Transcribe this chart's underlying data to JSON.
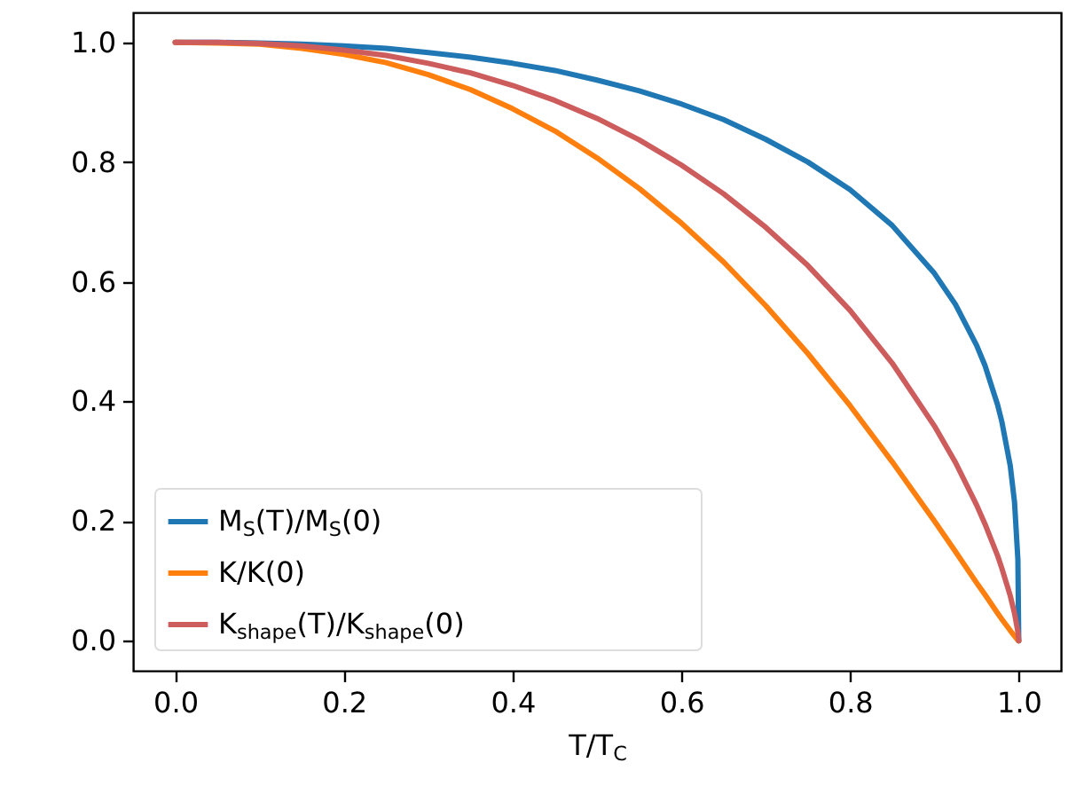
{
  "chart_data": {
    "type": "line",
    "xlabel": "T/T$_{C}$",
    "x": [
      0,
      0.05,
      0.1,
      0.15,
      0.2,
      0.25,
      0.3,
      0.35,
      0.4,
      0.45,
      0.5,
      0.55,
      0.6,
      0.65,
      0.7,
      0.75,
      0.8,
      0.85,
      0.9,
      0.925,
      0.95,
      0.96,
      0.975,
      0.98,
      0.99,
      0.995,
      0.999,
      1
    ],
    "series": [
      {
        "name": "M$_{S}$(T)/M$_{S}$(0)",
        "color": "#1f77b4",
        "values": [
          1,
          1.0,
          0.999,
          0.997,
          0.994,
          0.99,
          0.983,
          0.975,
          0.965,
          0.953,
          0.937,
          0.919,
          0.897,
          0.871,
          0.838,
          0.8,
          0.754,
          0.694,
          0.614,
          0.562,
          0.494,
          0.46,
          0.394,
          0.366,
          0.292,
          0.232,
          0.136,
          0
        ]
      },
      {
        "name": "K/K(0)",
        "color": "#ff7f0e",
        "values": [
          1,
          0.999,
          0.997,
          0.99,
          0.98,
          0.966,
          0.946,
          0.921,
          0.889,
          0.852,
          0.807,
          0.756,
          0.698,
          0.633,
          0.56,
          0.48,
          0.393,
          0.299,
          0.2,
          0.149,
          0.097,
          0.077,
          0.046,
          0.036,
          0.017,
          0.008,
          0.001,
          0
        ]
      },
      {
        "name": "K$_{shape}$(T)/K$_{shape}$(0)",
        "color": "#cd5c5c",
        "values": [
          1,
          1.0,
          0.998,
          0.994,
          0.987,
          0.978,
          0.965,
          0.949,
          0.928,
          0.903,
          0.873,
          0.837,
          0.795,
          0.747,
          0.691,
          0.627,
          0.552,
          0.464,
          0.359,
          0.298,
          0.227,
          0.195,
          0.142,
          0.121,
          0.075,
          0.046,
          0.015,
          0
        ]
      }
    ],
    "xlim": [
      -0.05,
      1.05
    ],
    "ylim": [
      -0.05,
      1.05
    ],
    "xticks": [
      {
        "value": 0,
        "label": "0.0"
      },
      0.2,
      0.4,
      0.6,
      0.8,
      {
        "value": 1,
        "label": "1.0"
      }
    ],
    "yticks": [
      {
        "value": 0,
        "label": "0.0"
      },
      0.2,
      0.4,
      0.6,
      0.8,
      {
        "value": 1,
        "label": "1.0"
      }
    ],
    "grid": false,
    "legend": "bottom left",
    "marker": "none",
    "line_style": "solid"
  }
}
